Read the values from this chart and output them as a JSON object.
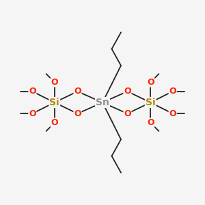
{
  "bg_color": "#f5f5f5",
  "sn_color": "#909090",
  "si_color": "#b8860b",
  "o_color": "#ff2200",
  "bond_color": "#222222",
  "figsize": [
    3.0,
    3.0
  ],
  "dpi": 100,
  "xlim": [
    -1.1,
    1.1
  ],
  "ylim": [
    -1.05,
    1.05
  ],
  "fs_heavy": 9,
  "fs_methyl": 7.5,
  "lw": 1.3
}
